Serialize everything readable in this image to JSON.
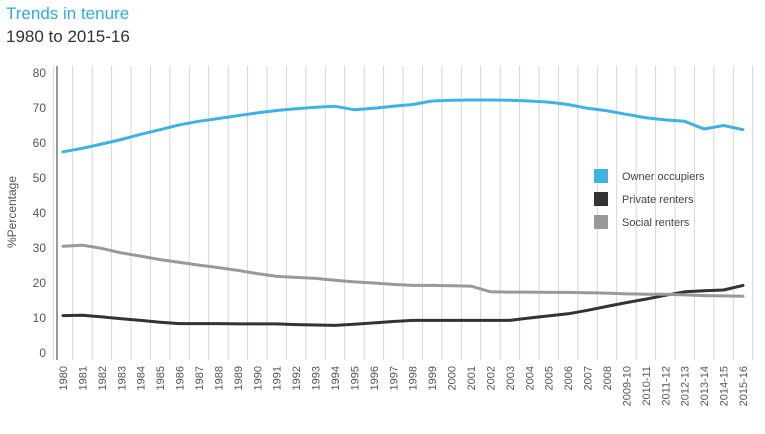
{
  "colors": {
    "title": "#33aadd",
    "owner": "#3fb1e3",
    "private": "#333333",
    "social": "#999999",
    "grid": "#d6d6d6",
    "axis": "#555555"
  },
  "chart_data": {
    "type": "line",
    "title": "Trends in tenure",
    "subtitle": "1980 to 2015-16",
    "xlabel": "",
    "ylabel": "%Percentage",
    "ylim": [
      0,
      80
    ],
    "yticks": [
      0,
      10,
      20,
      30,
      40,
      50,
      60,
      70,
      80
    ],
    "grid": "vertical",
    "legend_position": "right",
    "categories": [
      "1980",
      "1981",
      "1982",
      "1983",
      "1984",
      "1985",
      "1986",
      "1987",
      "1988",
      "1989",
      "1990",
      "1991",
      "1992",
      "1993",
      "1994",
      "1995",
      "1996",
      "1997",
      "1998",
      "1999",
      "2000",
      "2001",
      "2002",
      "2003",
      "2004",
      "2005",
      "2006",
      "2007",
      "2008",
      "2009-10",
      "2010-11",
      "2011-12",
      "2012-13",
      "2013-14",
      "2014-15",
      "2015-16"
    ],
    "series": [
      {
        "name": "Owner occupiers",
        "color": "#3fb1e3",
        "values": [
          57.5,
          58.5,
          59.7,
          61.0,
          62.5,
          63.8,
          65.2,
          66.2,
          67.0,
          67.8,
          68.6,
          69.3,
          69.8,
          70.2,
          70.5,
          69.5,
          69.9,
          70.5,
          71.0,
          72.0,
          72.2,
          72.3,
          72.3,
          72.2,
          72.0,
          71.7,
          71.0,
          69.9,
          69.2,
          68.2,
          67.2,
          66.6,
          66.2,
          64.0,
          65.0,
          63.8
        ]
      },
      {
        "name": "Private renters",
        "color": "#333333",
        "values": [
          10.7,
          10.8,
          10.3,
          9.8,
          9.3,
          8.8,
          8.4,
          8.4,
          8.4,
          8.3,
          8.3,
          8.3,
          8.1,
          8.0,
          7.9,
          8.2,
          8.6,
          9.0,
          9.3,
          9.3,
          9.3,
          9.3,
          9.3,
          9.3,
          10.0,
          10.6,
          11.2,
          12.2,
          13.3,
          14.4,
          15.4,
          16.5,
          17.5,
          17.8,
          18.0,
          19.3
        ]
      },
      {
        "name": "Social renters",
        "color": "#999999",
        "values": [
          30.5,
          30.8,
          29.9,
          28.6,
          27.7,
          26.7,
          25.9,
          25.1,
          24.4,
          23.6,
          22.7,
          21.9,
          21.6,
          21.3,
          20.8,
          20.3,
          20.0,
          19.6,
          19.3,
          19.3,
          19.2,
          19.1,
          17.5,
          17.4,
          17.4,
          17.3,
          17.3,
          17.2,
          17.1,
          16.9,
          16.8,
          16.8,
          16.6,
          16.4,
          16.3,
          16.2
        ]
      }
    ]
  }
}
